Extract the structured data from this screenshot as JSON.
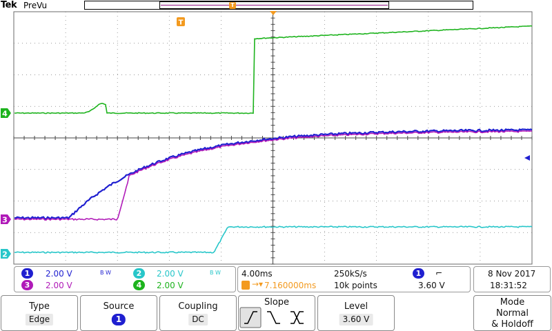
{
  "header": {
    "brand": "Tek",
    "mode": "PreVu",
    "trigger_marker": "T"
  },
  "colors": {
    "ch1": "#1f1fd0",
    "ch2": "#27c6c9",
    "ch3": "#b01ab8",
    "ch4": "#1db31d",
    "trigger": "#f39a1f",
    "grid": "#5a5a5a"
  },
  "markers": {
    "trigger_marker": "T",
    "ch4_ground": "4",
    "ch3_ground": "3",
    "ch2_ground": "2"
  },
  "channels": {
    "ch1": {
      "num": "1",
      "scale": "2.00 V",
      "bw": "B W"
    },
    "ch2": {
      "num": "2",
      "scale": "2.00 V",
      "bw": "B W"
    },
    "ch3": {
      "num": "3",
      "scale": "2.00 V"
    },
    "ch4": {
      "num": "4",
      "scale": "2.00 V"
    }
  },
  "timebase": {
    "scale": "4.00ms",
    "sample_rate": "250kS/s",
    "position": "7.160000ms",
    "record_length": "10k points"
  },
  "trigger": {
    "source": "1",
    "slope_symbol": "⌐",
    "level": "3.60 V"
  },
  "datetime": {
    "date": "8 Nov 2017",
    "time": "18:31:52"
  },
  "menu": {
    "type": {
      "title": "Type",
      "value": "Edge"
    },
    "source": {
      "title": "Source",
      "value": "1"
    },
    "coupling": {
      "title": "Coupling",
      "value": "DC"
    },
    "slope": {
      "title": "Slope"
    },
    "level": {
      "title": "Level",
      "value": "3.60 V"
    },
    "mode": {
      "title": "Mode",
      "line1": "Normal",
      "line2": "& Holdoff"
    }
  }
}
